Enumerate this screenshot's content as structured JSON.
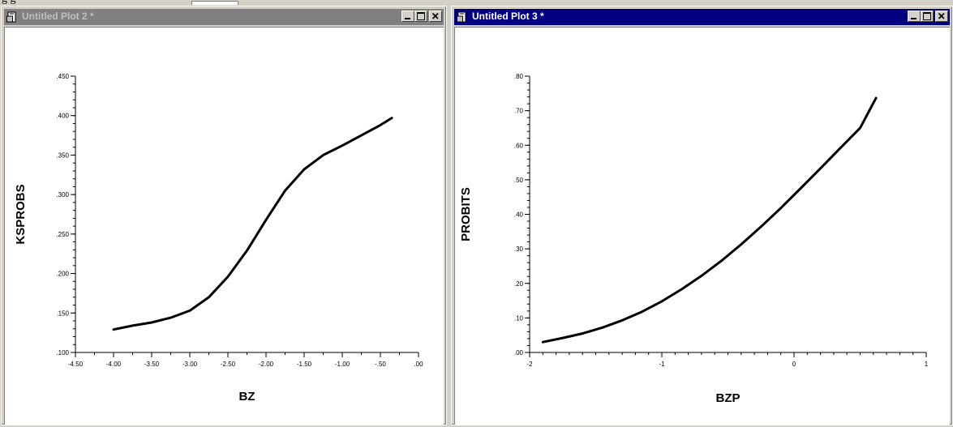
{
  "windows": [
    {
      "title": "Untitled Plot 2 *",
      "active": false,
      "chart": {
        "type": "line",
        "xlabel": "BZ",
        "ylabel": "KSPROBS",
        "xlim": [
          -4.5,
          0
        ],
        "ylim": [
          0.1,
          0.45
        ],
        "xticks": [
          -4.5,
          -4.0,
          -3.5,
          -3.0,
          -2.5,
          -2.0,
          -1.5,
          -1.0,
          -0.5,
          0
        ],
        "xtick_labels": [
          "-4.50",
          "-4.00",
          "-3.50",
          "-3.00",
          "-2.50",
          "-2.00",
          "-1.50",
          "-1.00",
          "-.50",
          ".00"
        ],
        "yticks": [
          0.1,
          0.15,
          0.2,
          0.25,
          0.3,
          0.35,
          0.4,
          0.45
        ],
        "ytick_labels": [
          ".100",
          ".150",
          ".200",
          ".250",
          ".300",
          ".350",
          ".400",
          ".450"
        ],
        "xminor": 0.25,
        "yminor": 0.01
      }
    },
    {
      "title": "Untitled Plot 3 *",
      "active": true,
      "chart": {
        "type": "line",
        "xlabel": "BZP",
        "ylabel": "PROBITS",
        "xlim": [
          -2,
          1
        ],
        "ylim": [
          0,
          0.8
        ],
        "xticks": [
          -2,
          -1,
          0,
          1
        ],
        "xtick_labels": [
          "-2",
          "-1",
          "0",
          "1"
        ],
        "yticks": [
          0,
          0.1,
          0.2,
          0.3,
          0.4,
          0.5,
          0.6,
          0.7,
          0.8
        ],
        "ytick_labels": [
          ".00",
          ".10",
          ".20",
          ".30",
          ".40",
          ".50",
          ".60",
          ".70",
          ".80"
        ],
        "xminor": 0.1,
        "yminor": 0.02
      }
    }
  ],
  "chart_data": [
    {
      "type": "line",
      "xlabel": "BZ",
      "ylabel": "KSPROBS",
      "xlim": [
        -4.5,
        0
      ],
      "ylim": [
        0.1,
        0.45
      ],
      "x": [
        -4.0,
        -3.75,
        -3.5,
        -3.25,
        -3.0,
        -2.75,
        -2.5,
        -2.25,
        -2.0,
        -1.75,
        -1.5,
        -1.25,
        -1.0,
        -0.75,
        -0.5,
        -0.35
      ],
      "y": [
        0.129,
        0.134,
        0.138,
        0.144,
        0.153,
        0.17,
        0.196,
        0.229,
        0.268,
        0.305,
        0.332,
        0.35,
        0.362,
        0.375,
        0.388,
        0.397
      ]
    },
    {
      "type": "line",
      "xlabel": "BZP",
      "ylabel": "PROBITS",
      "xlim": [
        -2,
        1
      ],
      "ylim": [
        0,
        0.8
      ],
      "x": [
        -1.9,
        -1.75,
        -1.6,
        -1.45,
        -1.3,
        -1.15,
        -1.0,
        -0.85,
        -0.7,
        -0.55,
        -0.4,
        -0.25,
        -0.1,
        0.05,
        0.2,
        0.35,
        0.5,
        0.62
      ],
      "y": [
        0.03,
        0.042,
        0.055,
        0.072,
        0.093,
        0.118,
        0.148,
        0.183,
        0.222,
        0.265,
        0.313,
        0.364,
        0.418,
        0.475,
        0.533,
        0.592,
        0.65,
        0.737
      ]
    }
  ]
}
